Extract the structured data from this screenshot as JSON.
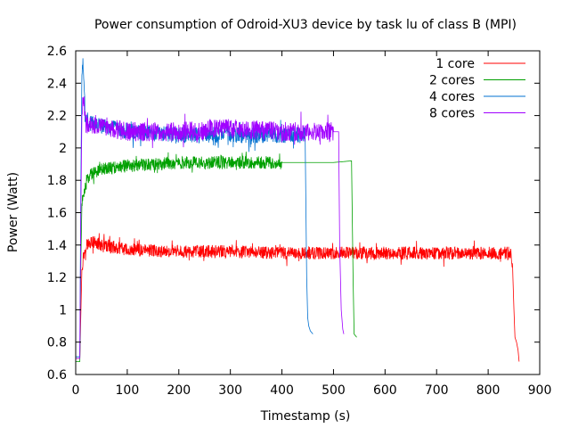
{
  "chart_data": {
    "type": "line",
    "title": "Power consumption of Odroid-XU3 device by task lu of class B (MPI)",
    "xlabel": "Timestamp (s)",
    "ylabel": "Power (Watt)",
    "xlim": [
      0,
      900
    ],
    "ylim": [
      0.6,
      2.6
    ],
    "x_ticks": [
      0,
      100,
      200,
      300,
      400,
      500,
      600,
      700,
      800,
      900
    ],
    "y_ticks": [
      0.6,
      0.8,
      1,
      1.2,
      1.4,
      1.6,
      1.8,
      2,
      2.2,
      2.4,
      2.6
    ],
    "x_tick_labels": [
      "0",
      "100",
      "200",
      "300",
      "400",
      "500",
      "600",
      "700",
      "800",
      "900"
    ],
    "y_tick_labels": [
      "0.6",
      "0.8",
      "1",
      "1.2",
      "1.4",
      "1.6",
      "1.8",
      "2",
      "2.2",
      "2.4",
      "2.6"
    ],
    "legend_position": "top-right",
    "grid": false,
    "series": [
      {
        "name": "1 core",
        "color": "#ff0000",
        "x": [
          0,
          8,
          10,
          12,
          15,
          20,
          30,
          50,
          100,
          200,
          300,
          400,
          500,
          600,
          700,
          800,
          845,
          848,
          850,
          852,
          855,
          858,
          860
        ],
        "y": [
          0.7,
          0.7,
          0.98,
          1.25,
          1.33,
          1.4,
          1.42,
          1.4,
          1.37,
          1.36,
          1.36,
          1.35,
          1.35,
          1.35,
          1.35,
          1.35,
          1.35,
          1.2,
          1.0,
          0.83,
          0.8,
          0.75,
          0.68
        ],
        "noise": 0.04
      },
      {
        "name": "2 cores",
        "color": "#00a000",
        "x": [
          0,
          8,
          10,
          12,
          15,
          20,
          30,
          50,
          100,
          200,
          300,
          400,
          500,
          535,
          538,
          540,
          545
        ],
        "y": [
          0.68,
          0.68,
          1.3,
          1.65,
          1.72,
          1.78,
          1.84,
          1.87,
          1.89,
          1.91,
          1.91,
          1.91,
          1.91,
          1.92,
          1.2,
          0.85,
          0.83
        ],
        "noise": 0.04
      },
      {
        "name": "4 cores",
        "color": "#0070d0",
        "x": [
          0,
          8,
          10,
          12,
          14,
          18,
          30,
          100,
          200,
          300,
          400,
          445,
          448,
          450,
          452,
          455,
          460
        ],
        "y": [
          0.71,
          0.71,
          1.8,
          2.45,
          2.55,
          2.2,
          2.15,
          2.1,
          2.08,
          2.08,
          2.08,
          2.08,
          1.2,
          0.95,
          0.9,
          0.87,
          0.85
        ],
        "noise": 0.05
      },
      {
        "name": "8 cores",
        "color": "#a000ff",
        "x": [
          0,
          8,
          10,
          12,
          15,
          20,
          30,
          100,
          200,
          300,
          400,
          500,
          510,
          512,
          515,
          518,
          520
        ],
        "y": [
          0.7,
          0.7,
          1.6,
          2.2,
          2.3,
          2.15,
          2.15,
          2.1,
          2.1,
          2.12,
          2.1,
          2.1,
          2.1,
          1.4,
          1.0,
          0.88,
          0.85
        ],
        "noise": 0.06
      }
    ]
  }
}
